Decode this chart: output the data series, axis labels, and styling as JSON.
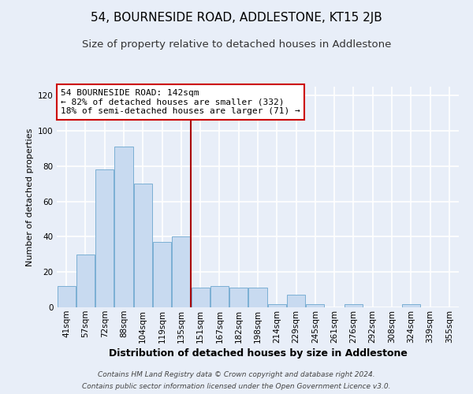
{
  "title": "54, BOURNESIDE ROAD, ADDLESTONE, KT15 2JB",
  "subtitle": "Size of property relative to detached houses in Addlestone",
  "xlabel": "Distribution of detached houses by size in Addlestone",
  "ylabel": "Number of detached properties",
  "categories": [
    "41sqm",
    "57sqm",
    "72sqm",
    "88sqm",
    "104sqm",
    "119sqm",
    "135sqm",
    "151sqm",
    "167sqm",
    "182sqm",
    "198sqm",
    "214sqm",
    "229sqm",
    "245sqm",
    "261sqm",
    "276sqm",
    "292sqm",
    "308sqm",
    "324sqm",
    "339sqm",
    "355sqm"
  ],
  "values": [
    12,
    30,
    78,
    91,
    70,
    37,
    40,
    11,
    12,
    11,
    11,
    2,
    7,
    2,
    0,
    2,
    0,
    0,
    2,
    0,
    0
  ],
  "bar_color": "#c8daf0",
  "bar_edge_color": "#7bafd4",
  "vline_x": 7.0,
  "vline_color": "#aa0000",
  "ylim": [
    0,
    125
  ],
  "yticks": [
    0,
    20,
    40,
    60,
    80,
    100,
    120
  ],
  "annotation_title": "54 BOURNESIDE ROAD: 142sqm",
  "annotation_line1": "← 82% of detached houses are smaller (332)",
  "annotation_line2": "18% of semi-detached houses are larger (71) →",
  "annotation_box_color": "#ffffff",
  "annotation_box_edge": "#cc0000",
  "footer_line1": "Contains HM Land Registry data © Crown copyright and database right 2024.",
  "footer_line2": "Contains public sector information licensed under the Open Government Licence v3.0.",
  "background_color": "#e8eef8",
  "plot_bg_color": "#e8eef8",
  "grid_color": "#ffffff",
  "title_fontsize": 11,
  "subtitle_fontsize": 9.5,
  "xlabel_fontsize": 9,
  "ylabel_fontsize": 8,
  "tick_fontsize": 7.5,
  "annotation_fontsize": 8,
  "footer_fontsize": 6.5
}
